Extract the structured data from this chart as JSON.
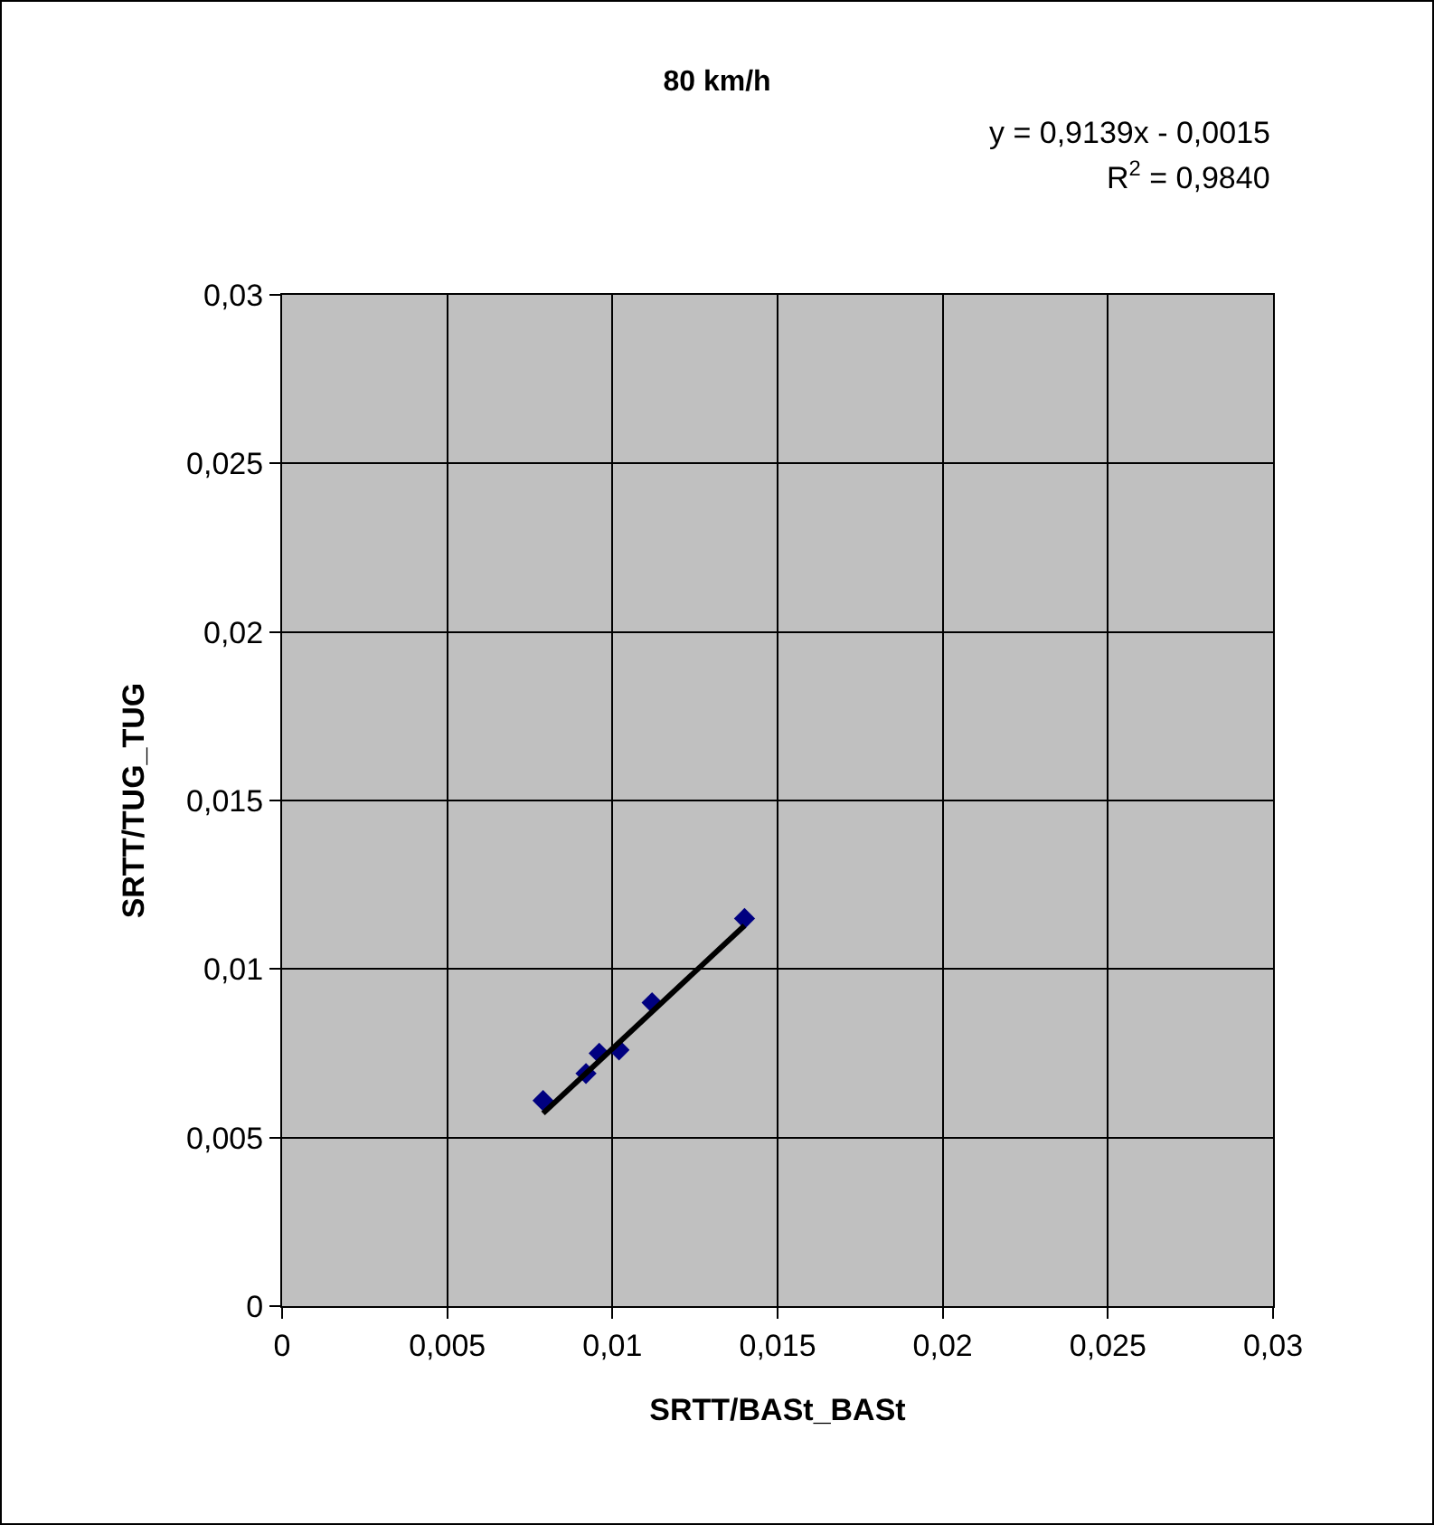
{
  "chart_data": {
    "type": "scatter",
    "title": "80 km/h",
    "xlabel": "SRTT/BASt_BASt",
    "ylabel": "SRTT/TUG_TUG",
    "annotations": [
      "y = 0,9139x - 0,0015",
      "R$^{2}$ = 0,9840"
    ],
    "series": [
      {
        "color": "#000080",
        "marker": "diamond",
        "x": [
          0.0079,
          0.0092,
          0.0096,
          0.0102,
          0.0112,
          0.014
        ],
        "values": [
          0.0061,
          0.0069,
          0.0075,
          0.0076,
          0.009,
          0.0115
        ]
      },
      {
        "type": "line",
        "color": "#000000",
        "marker": "none",
        "line_style": "solid",
        "x": [
          0.0079,
          0.014
        ],
        "values": [
          0.00572,
          0.01129
        ]
      }
    ],
    "xlim": [
      0,
      0.03
    ],
    "ylim": [
      0,
      0.03
    ],
    "xticks": [
      0,
      {
        "value": 0.005,
        "label": "0,005"
      },
      {
        "value": 0.01,
        "label": "0,01"
      },
      {
        "value": 0.015,
        "label": "0,015"
      },
      {
        "value": 0.02,
        "label": "0,02"
      },
      {
        "value": 0.025,
        "label": "0,025"
      },
      {
        "value": 0.03,
        "label": "0,03"
      }
    ],
    "yticks": [
      0,
      {
        "value": 0.005,
        "label": "0,005"
      },
      {
        "value": 0.01,
        "label": "0,01"
      },
      {
        "value": 0.015,
        "label": "0,015"
      },
      {
        "value": 0.02,
        "label": "0,02"
      },
      {
        "value": 0.025,
        "label": "0,025"
      },
      {
        "value": 0.03,
        "label": "0,03"
      }
    ],
    "grid": true
  }
}
